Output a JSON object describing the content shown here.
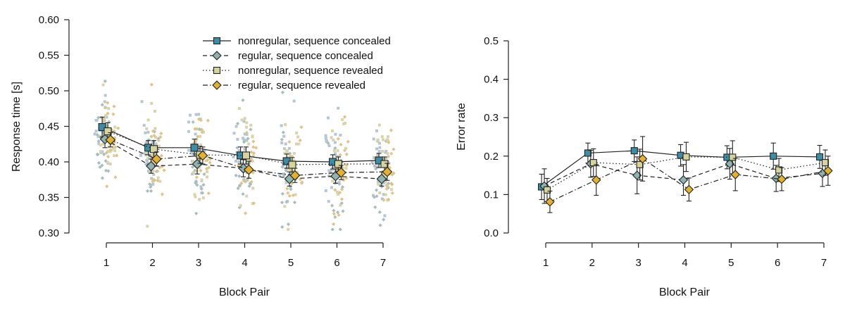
{
  "chart_data": [
    {
      "type": "line",
      "panel": "left",
      "xlabel": "Block Pair",
      "ylabel": "Response time [s]",
      "x": [
        1,
        2,
        3,
        4,
        5,
        6,
        7
      ],
      "xticks": [
        "1",
        "2",
        "3",
        "4",
        "5",
        "6",
        "7"
      ],
      "ylim": [
        0.3,
        0.6
      ],
      "yticks": [
        "0.30",
        "0.35",
        "0.40",
        "0.45",
        "0.50",
        "0.55",
        "0.60"
      ],
      "legend_position": "top-center",
      "series": [
        {
          "name": "nonregular, sequence concealed",
          "marker": "square",
          "color": "#3a8fa6",
          "line": "solid",
          "values": [
            0.449,
            0.42,
            0.42,
            0.409,
            0.401,
            0.4,
            0.402
          ],
          "err": [
            0.014,
            0.01,
            0.012,
            0.012,
            0.01,
            0.01,
            0.01
          ]
        },
        {
          "name": "regular, sequence concealed",
          "marker": "diamond",
          "color": "#8fb3b0",
          "line": "dashed",
          "values": [
            0.432,
            0.394,
            0.397,
            0.391,
            0.376,
            0.38,
            0.376
          ],
          "err": [
            0.012,
            0.01,
            0.014,
            0.012,
            0.01,
            0.01,
            0.01
          ]
        },
        {
          "name": "nonregular, sequence revealed",
          "marker": "square",
          "color": "#d6d49a",
          "line": "dotted",
          "values": [
            0.443,
            0.418,
            0.41,
            0.409,
            0.396,
            0.397,
            0.397
          ],
          "err": [
            0.012,
            0.012,
            0.012,
            0.012,
            0.01,
            0.01,
            0.01
          ]
        },
        {
          "name": "regular, sequence revealed",
          "marker": "diamond",
          "color": "#e3b22a",
          "line": "dashdot",
          "values": [
            0.431,
            0.404,
            0.409,
            0.389,
            0.381,
            0.385,
            0.386
          ],
          "err": [
            0.01,
            0.01,
            0.012,
            0.012,
            0.01,
            0.01,
            0.012
          ]
        }
      ],
      "scatter_note": "individual participant points shown as small jittered markers around each block pair"
    },
    {
      "type": "line",
      "panel": "right",
      "xlabel": "Block Pair",
      "ylabel": "Error rate",
      "x": [
        1,
        2,
        3,
        4,
        5,
        6,
        7
      ],
      "xticks": [
        "1",
        "2",
        "3",
        "4",
        "5",
        "6",
        "7"
      ],
      "ylim": [
        0.0,
        0.5
      ],
      "yticks": [
        "0.0",
        "0.1",
        "0.2",
        "0.3",
        "0.4",
        "0.5"
      ],
      "series": [
        {
          "name": "nonregular, sequence concealed",
          "marker": "square",
          "color": "#3a8fa6",
          "line": "solid",
          "values": [
            0.12,
            0.208,
            0.214,
            0.202,
            0.197,
            0.2,
            0.198
          ],
          "err": [
            0.033,
            0.026,
            0.028,
            0.028,
            0.03,
            0.034,
            0.03
          ]
        },
        {
          "name": "regular, sequence concealed",
          "marker": "diamond",
          "color": "#8fb3b0",
          "line": "dashed",
          "values": [
            0.122,
            0.18,
            0.15,
            0.138,
            0.18,
            0.142,
            0.155
          ],
          "err": [
            0.045,
            0.035,
            0.048,
            0.04,
            0.04,
            0.034,
            0.034
          ]
        },
        {
          "name": "nonregular, sequence revealed",
          "marker": "square",
          "color": "#d6d49a",
          "line": "dotted",
          "values": [
            0.112,
            0.183,
            0.178,
            0.198,
            0.197,
            0.164,
            0.183
          ],
          "err": [
            0.03,
            0.036,
            0.04,
            0.038,
            0.043,
            0.03,
            0.033
          ]
        },
        {
          "name": "regular, sequence revealed",
          "marker": "diamond",
          "color": "#e3b22a",
          "line": "dashdot",
          "values": [
            0.081,
            0.138,
            0.193,
            0.113,
            0.152,
            0.14,
            0.162
          ],
          "err": [
            0.028,
            0.04,
            0.058,
            0.03,
            0.042,
            0.03,
            0.038
          ]
        }
      ]
    }
  ]
}
